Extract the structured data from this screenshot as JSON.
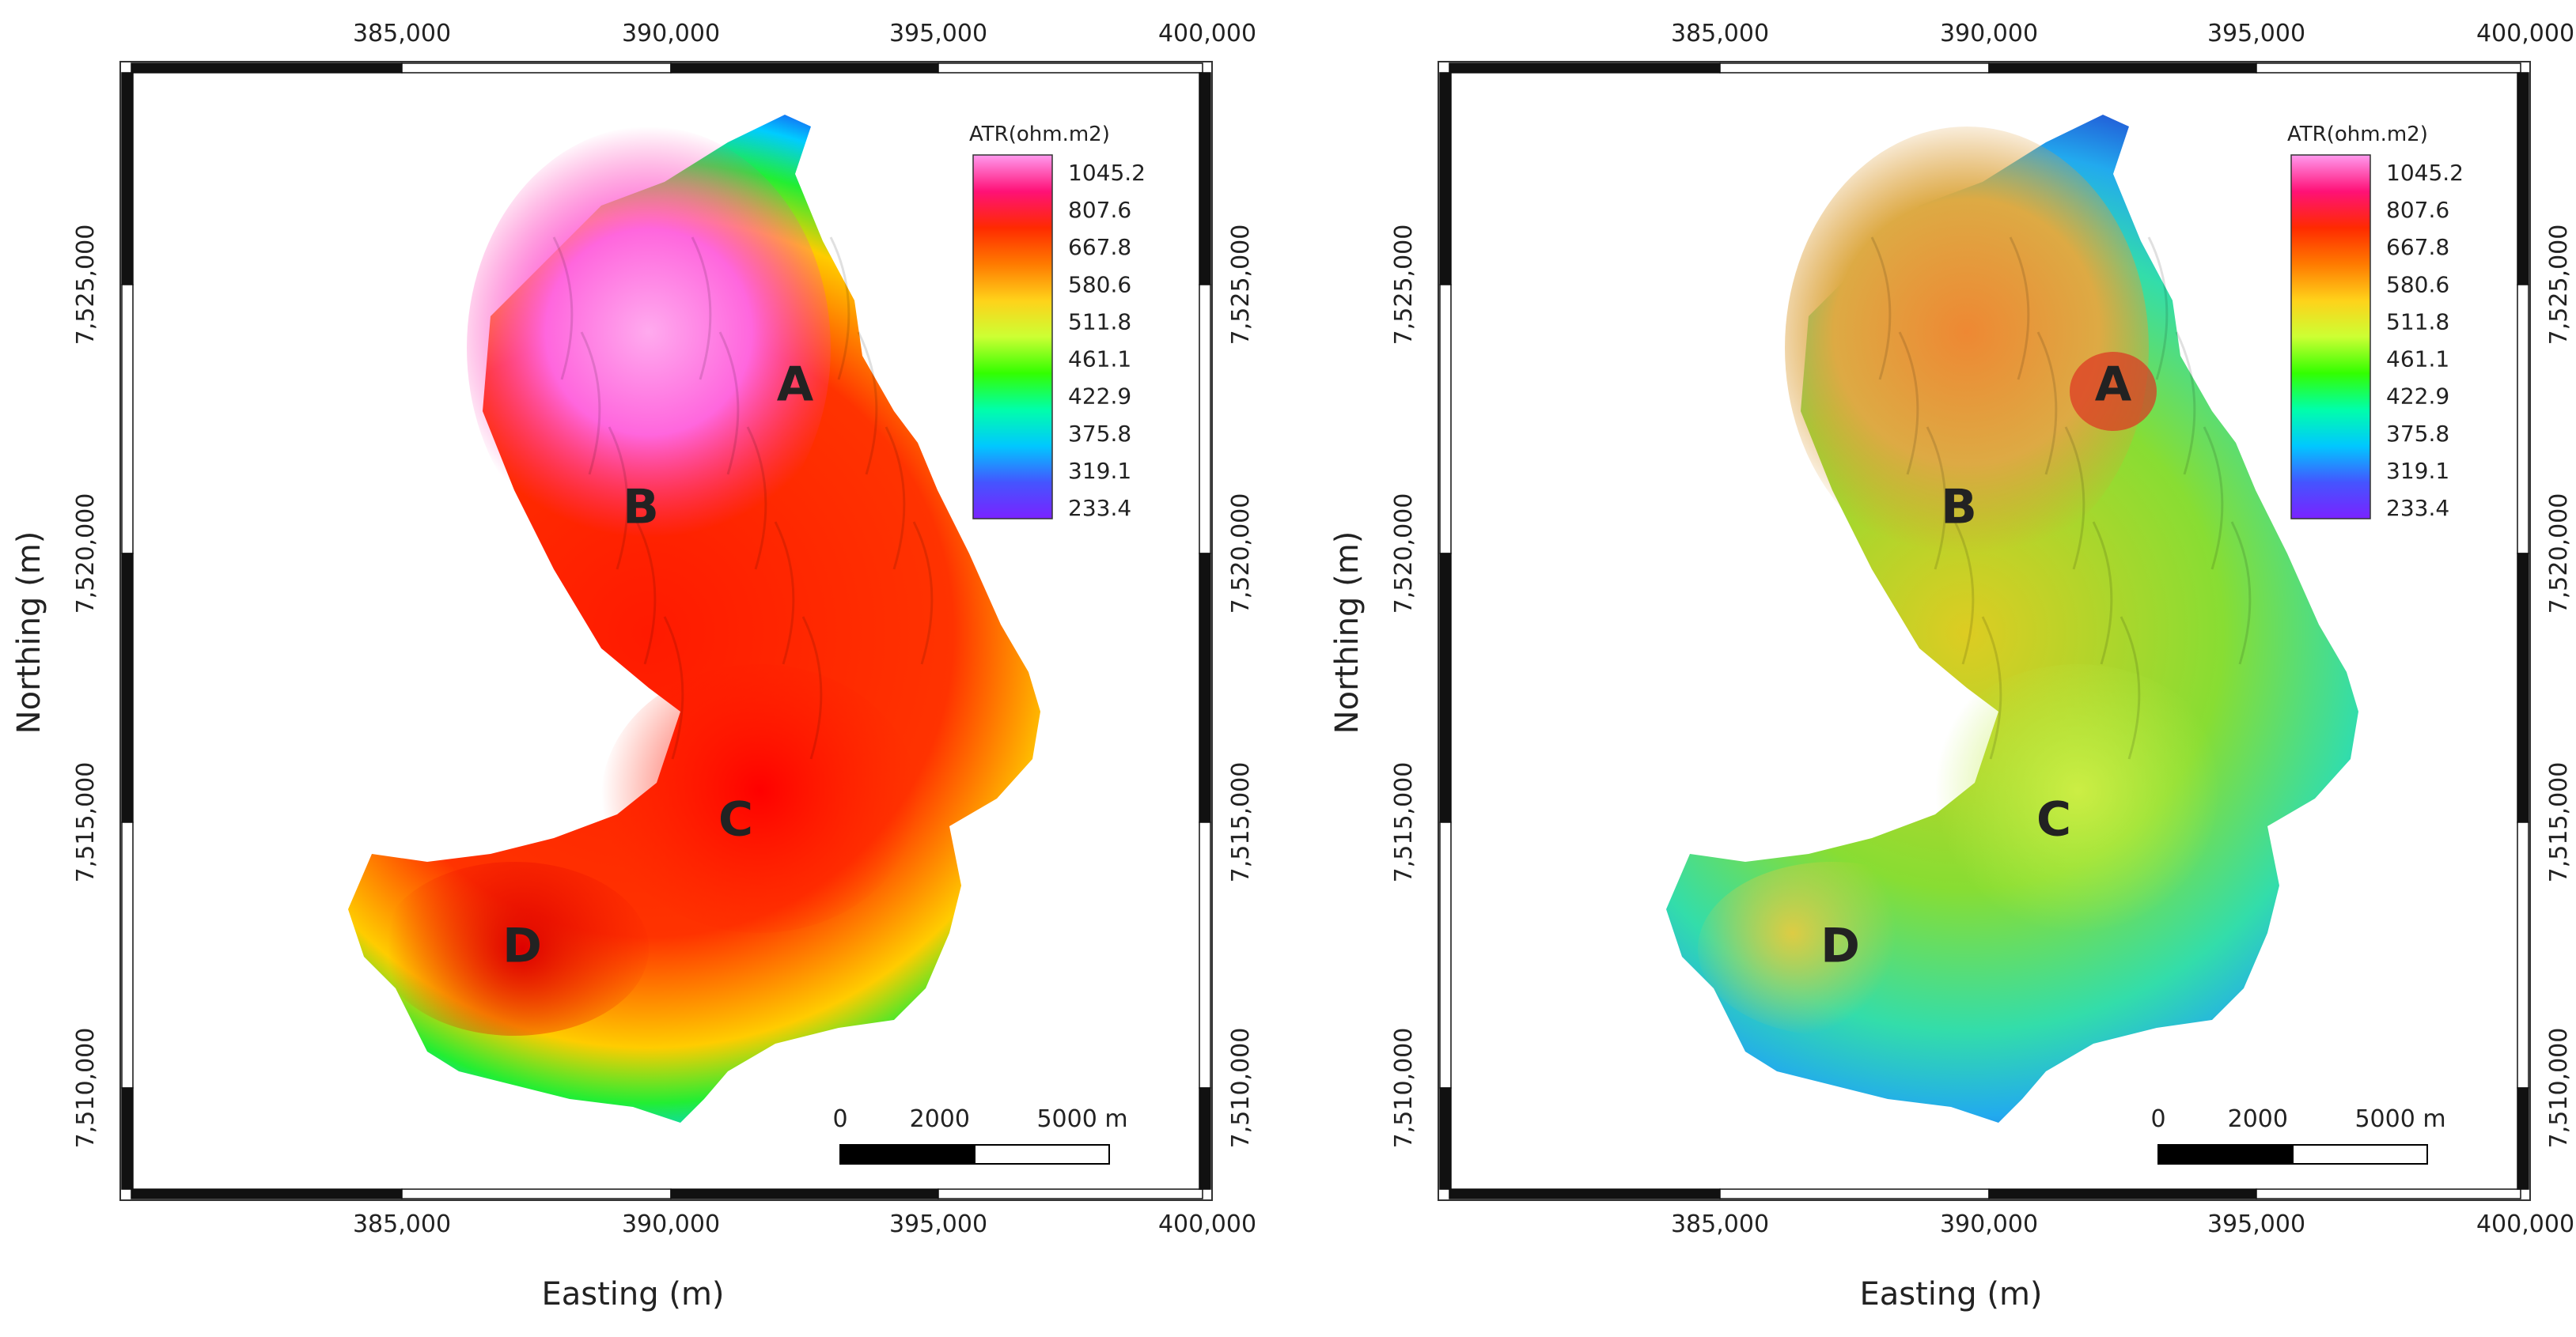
{
  "panels": [
    {
      "id": "left",
      "legend_title": "ATR(ohm.m2)",
      "region_labels": [
        "A",
        "B",
        "C",
        "D"
      ],
      "style": "sharp"
    },
    {
      "id": "right",
      "legend_title": "ATR(ohm.m2)",
      "region_labels": [
        "A",
        "B",
        "C",
        "D"
      ],
      "style": "shaded"
    }
  ],
  "axes": {
    "x_label": "Easting (m)",
    "y_label": "Northing (m)",
    "x_ticks": [
      "385,000",
      "390,000",
      "395,000",
      "400,000"
    ],
    "y_ticks": [
      "7,525,000",
      "7,520,000",
      "7,515,000",
      "7,510,000"
    ]
  },
  "legend": {
    "values": [
      "1045.2",
      "807.6",
      "667.8",
      "580.6",
      "511.8",
      "461.1",
      "422.9",
      "375.8",
      "319.1",
      "233.4"
    ],
    "colors": [
      "#ff99ee",
      "#ff1177",
      "#ff2a00",
      "#ff7a00",
      "#ffd21a",
      "#ccff33",
      "#33ff00",
      "#00ffaa",
      "#00c8ff",
      "#4455ff",
      "#7a22ff"
    ]
  },
  "scale_bar": {
    "labels": [
      "0",
      "2000",
      "5000 m"
    ]
  }
}
